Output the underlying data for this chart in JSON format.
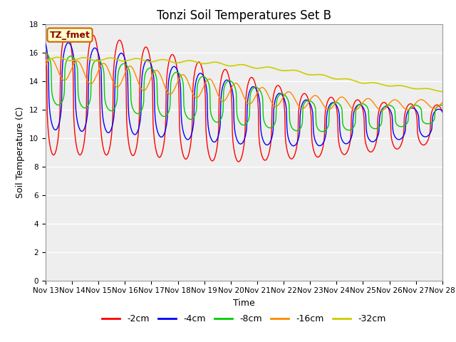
{
  "title": "Tonzi Soil Temperatures Set B",
  "xlabel": "Time",
  "ylabel": "Soil Temperature (C)",
  "ylim": [
    0,
    18
  ],
  "yticks": [
    0,
    2,
    4,
    6,
    8,
    10,
    12,
    14,
    16,
    18
  ],
  "colors": {
    "d2": "#ff0000",
    "d4": "#0000ff",
    "d8": "#00cc00",
    "d16": "#ff8800",
    "d32": "#cccc00"
  },
  "annotation_text": "TZ_fmet",
  "annotation_bg": "#ffffcc",
  "annotation_border": "#cc6600",
  "x_tick_labels": [
    "Nov 13",
    "Nov 14",
    "Nov 15",
    "Nov 16",
    "Nov 17",
    "Nov 18",
    "Nov 19",
    "Nov 20",
    "Nov 21",
    "Nov 22",
    "Nov 23",
    "Nov 24",
    "Nov 25",
    "Nov 26",
    "Nov 27",
    "Nov 28"
  ],
  "title_fontsize": 12,
  "axis_fontsize": 9,
  "tick_fontsize": 7.5,
  "legend_fontsize": 9,
  "n_days": 15,
  "pts_per_day": 48
}
